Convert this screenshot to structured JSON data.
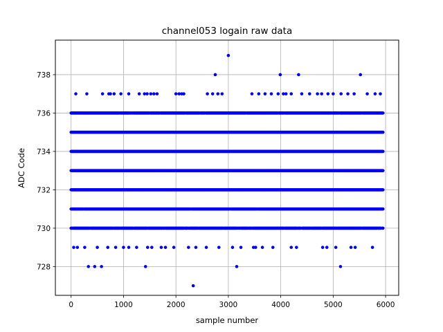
{
  "chart_data": {
    "type": "scatter",
    "title": "channel053 logain raw data",
    "xlabel": "sample number",
    "ylabel": "ADC Code",
    "xlim": [
      -300,
      6250
    ],
    "ylim": [
      726.5,
      739.8
    ],
    "xticks": [
      0,
      1000,
      2000,
      3000,
      4000,
      5000,
      6000
    ],
    "yticks": [
      728,
      730,
      732,
      734,
      736,
      738
    ],
    "grid": true,
    "marker_color": "#0000ff",
    "x_range": [
      0,
      5950
    ],
    "dense_levels": [
      {
        "y": 730,
        "coverage": 0.95
      },
      {
        "y": 731,
        "coverage": 0.97
      },
      {
        "y": 732,
        "coverage": 1.0
      },
      {
        "y": 733,
        "coverage": 1.0
      },
      {
        "y": 734,
        "coverage": 1.0
      },
      {
        "y": 735,
        "coverage": 1.0
      },
      {
        "y": 736,
        "coverage": 0.97
      }
    ],
    "points": [
      {
        "x": 90,
        "y": 737
      },
      {
        "x": 300,
        "y": 737
      },
      {
        "x": 600,
        "y": 737
      },
      {
        "x": 720,
        "y": 737
      },
      {
        "x": 750,
        "y": 737
      },
      {
        "x": 820,
        "y": 737
      },
      {
        "x": 950,
        "y": 737
      },
      {
        "x": 1100,
        "y": 737
      },
      {
        "x": 1300,
        "y": 737
      },
      {
        "x": 1400,
        "y": 737
      },
      {
        "x": 1450,
        "y": 737
      },
      {
        "x": 1520,
        "y": 737
      },
      {
        "x": 1580,
        "y": 737
      },
      {
        "x": 1640,
        "y": 737
      },
      {
        "x": 2000,
        "y": 737
      },
      {
        "x": 2060,
        "y": 737
      },
      {
        "x": 2110,
        "y": 737
      },
      {
        "x": 2150,
        "y": 737
      },
      {
        "x": 2600,
        "y": 737
      },
      {
        "x": 2700,
        "y": 737
      },
      {
        "x": 2800,
        "y": 737
      },
      {
        "x": 2880,
        "y": 737
      },
      {
        "x": 3450,
        "y": 737
      },
      {
        "x": 3580,
        "y": 737
      },
      {
        "x": 3700,
        "y": 737
      },
      {
        "x": 3820,
        "y": 737
      },
      {
        "x": 3950,
        "y": 737
      },
      {
        "x": 4050,
        "y": 737
      },
      {
        "x": 4100,
        "y": 737
      },
      {
        "x": 4200,
        "y": 737
      },
      {
        "x": 4400,
        "y": 737
      },
      {
        "x": 4550,
        "y": 737
      },
      {
        "x": 4700,
        "y": 737
      },
      {
        "x": 4780,
        "y": 737
      },
      {
        "x": 4900,
        "y": 737
      },
      {
        "x": 5000,
        "y": 737
      },
      {
        "x": 5150,
        "y": 737
      },
      {
        "x": 5280,
        "y": 737
      },
      {
        "x": 5400,
        "y": 737
      },
      {
        "x": 5650,
        "y": 737
      },
      {
        "x": 5800,
        "y": 737
      },
      {
        "x": 5900,
        "y": 737
      },
      {
        "x": 2750,
        "y": 738
      },
      {
        "x": 3990,
        "y": 738
      },
      {
        "x": 4340,
        "y": 738
      },
      {
        "x": 5520,
        "y": 738
      },
      {
        "x": 3000,
        "y": 739
      },
      {
        "x": 50,
        "y": 729
      },
      {
        "x": 120,
        "y": 729
      },
      {
        "x": 260,
        "y": 729
      },
      {
        "x": 500,
        "y": 729
      },
      {
        "x": 700,
        "y": 729
      },
      {
        "x": 850,
        "y": 729
      },
      {
        "x": 1000,
        "y": 729
      },
      {
        "x": 1100,
        "y": 729
      },
      {
        "x": 1250,
        "y": 729
      },
      {
        "x": 1460,
        "y": 729
      },
      {
        "x": 1540,
        "y": 729
      },
      {
        "x": 1720,
        "y": 729
      },
      {
        "x": 1800,
        "y": 729
      },
      {
        "x": 1960,
        "y": 729
      },
      {
        "x": 2240,
        "y": 729
      },
      {
        "x": 2380,
        "y": 729
      },
      {
        "x": 2580,
        "y": 729
      },
      {
        "x": 2820,
        "y": 729
      },
      {
        "x": 3080,
        "y": 729
      },
      {
        "x": 3240,
        "y": 729
      },
      {
        "x": 3480,
        "y": 729
      },
      {
        "x": 3520,
        "y": 729
      },
      {
        "x": 3650,
        "y": 729
      },
      {
        "x": 3850,
        "y": 729
      },
      {
        "x": 4200,
        "y": 729
      },
      {
        "x": 4300,
        "y": 729
      },
      {
        "x": 4800,
        "y": 729
      },
      {
        "x": 4880,
        "y": 729
      },
      {
        "x": 5050,
        "y": 729
      },
      {
        "x": 5340,
        "y": 729
      },
      {
        "x": 5420,
        "y": 729
      },
      {
        "x": 5750,
        "y": 729
      },
      {
        "x": 330,
        "y": 728
      },
      {
        "x": 450,
        "y": 728
      },
      {
        "x": 580,
        "y": 728
      },
      {
        "x": 1420,
        "y": 728
      },
      {
        "x": 3160,
        "y": 728
      },
      {
        "x": 5140,
        "y": 728
      },
      {
        "x": 2330,
        "y": 727
      }
    ]
  }
}
